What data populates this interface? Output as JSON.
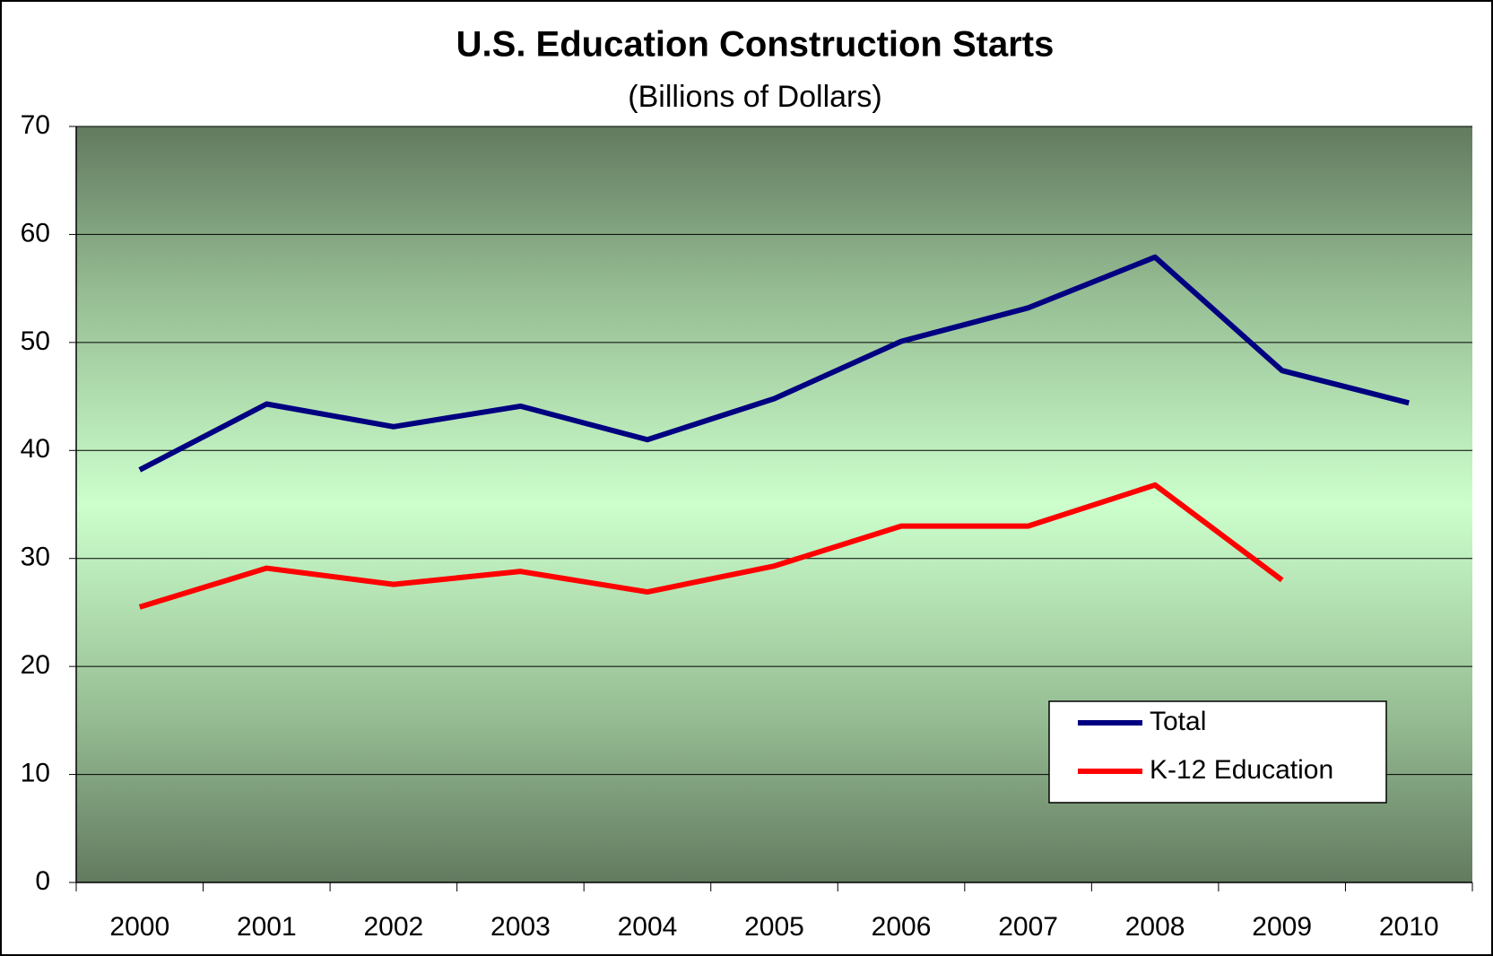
{
  "chart_data": {
    "type": "line",
    "title": "U.S. Education Construction Starts",
    "subtitle": "(Billions of Dollars)",
    "categories": [
      "2000",
      "2001",
      "2002",
      "2003",
      "2004",
      "2005",
      "2006",
      "2007",
      "2008",
      "2009",
      "2010"
    ],
    "series": [
      {
        "name": "Total",
        "color": "#000080",
        "values": [
          38.2,
          44.3,
          42.2,
          44.1,
          41.0,
          44.8,
          50.1,
          53.2,
          57.9,
          47.4,
          44.4
        ]
      },
      {
        "name": "K-12 Education",
        "color": "#ff0000",
        "values": [
          25.5,
          29.1,
          27.6,
          28.8,
          26.9,
          29.3,
          33.0,
          33.0,
          36.8,
          28.0,
          null
        ]
      }
    ],
    "ylim": [
      0,
      70
    ],
    "yticks": [
      0,
      10,
      20,
      30,
      40,
      50,
      60,
      70
    ],
    "grid": true,
    "legend": "lower right"
  }
}
